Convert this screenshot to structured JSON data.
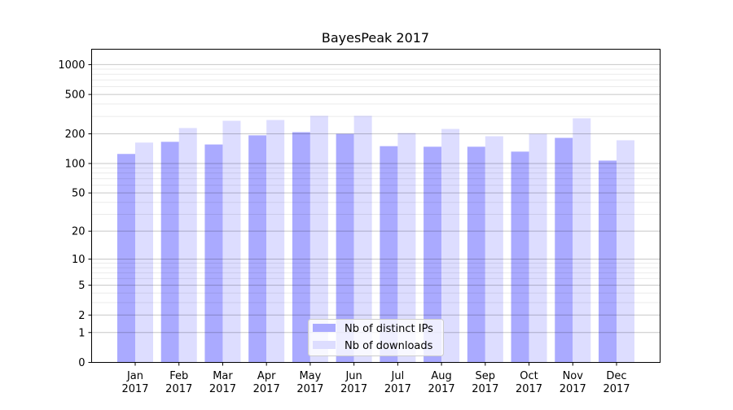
{
  "chart_data": {
    "type": "bar",
    "title": "BayesPeak 2017",
    "xlabel": "",
    "ylabel": "",
    "yscale": "log10(1+y)",
    "ylim": [
      0,
      1430
    ],
    "grid": true,
    "yticks": [
      0,
      1,
      2,
      5,
      10,
      20,
      50,
      100,
      200,
      500,
      1000
    ],
    "categories": [
      [
        "Jan",
        "2017"
      ],
      [
        "Feb",
        "2017"
      ],
      [
        "Mar",
        "2017"
      ],
      [
        "Apr",
        "2017"
      ],
      [
        "May",
        "2017"
      ],
      [
        "Jun",
        "2017"
      ],
      [
        "Jul",
        "2017"
      ],
      [
        "Aug",
        "2017"
      ],
      [
        "Sep",
        "2017"
      ],
      [
        "Oct",
        "2017"
      ],
      [
        "Nov",
        "2017"
      ],
      [
        "Dec",
        "2017"
      ]
    ],
    "series": [
      {
        "name": "Nb of distinct IPs",
        "color": "#aaaaff",
        "values": [
          125,
          166,
          156,
          193,
          208,
          200,
          150,
          148,
          148,
          132,
          182,
          107
        ]
      },
      {
        "name": "Nb of downloads",
        "color": "#ddddff",
        "values": [
          163,
          229,
          271,
          276,
          304,
          304,
          204,
          224,
          189,
          200,
          287,
          172
        ]
      }
    ],
    "legend": "bottom-center"
  }
}
